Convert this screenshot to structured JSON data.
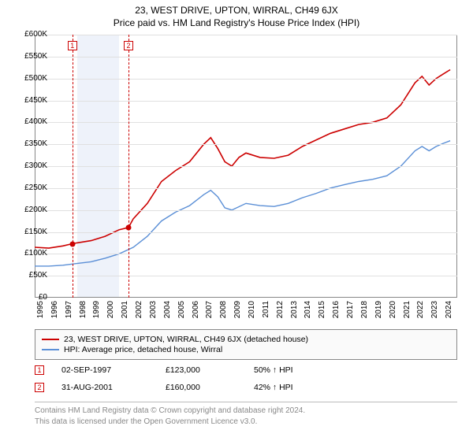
{
  "title_line1": "23, WEST DRIVE, UPTON, WIRRAL, CH49 6JX",
  "title_line2": "Price paid vs. HM Land Registry's House Price Index (HPI)",
  "chart": {
    "type": "line",
    "background_color": "#ffffff",
    "grid_color": "#e0e0e0",
    "axis_color": "#888888",
    "label_fontsize": 10,
    "x": {
      "min": 1995,
      "max": 2025,
      "ticks": [
        1995,
        1996,
        1997,
        1998,
        1999,
        2000,
        2001,
        2002,
        2003,
        2004,
        2005,
        2006,
        2007,
        2008,
        2009,
        2010,
        2011,
        2012,
        2013,
        2014,
        2015,
        2016,
        2017,
        2018,
        2019,
        2020,
        2021,
        2022,
        2023,
        2024
      ]
    },
    "y": {
      "min": 0,
      "max": 600000,
      "step": 50000,
      "tick_labels": [
        "£0",
        "£50K",
        "£100K",
        "£150K",
        "£200K",
        "£250K",
        "£300K",
        "£350K",
        "£400K",
        "£450K",
        "£500K",
        "£550K",
        "£600K"
      ]
    },
    "shaded_bands": [
      {
        "from": 1998,
        "to": 2001,
        "color": "#eef2fa"
      }
    ],
    "sale_markers": [
      {
        "id": "1",
        "x": 1997.67,
        "price": 123000
      },
      {
        "id": "2",
        "x": 2001.66,
        "price": 160000
      }
    ],
    "sale_marker_color": "#cc0000",
    "series": [
      {
        "name": "23, WEST DRIVE, UPTON, WIRRAL, CH49 6JX (detached house)",
        "color": "#cc0000",
        "line_width": 1.6,
        "points": [
          [
            1995,
            115000
          ],
          [
            1996,
            113000
          ],
          [
            1997,
            118000
          ],
          [
            1997.67,
            123000
          ],
          [
            1998,
            125000
          ],
          [
            1999,
            130000
          ],
          [
            2000,
            140000
          ],
          [
            2001,
            155000
          ],
          [
            2001.66,
            160000
          ],
          [
            2002,
            180000
          ],
          [
            2003,
            215000
          ],
          [
            2004,
            265000
          ],
          [
            2005,
            290000
          ],
          [
            2006,
            310000
          ],
          [
            2007,
            350000
          ],
          [
            2007.5,
            365000
          ],
          [
            2008,
            340000
          ],
          [
            2008.5,
            310000
          ],
          [
            2009,
            300000
          ],
          [
            2009.5,
            320000
          ],
          [
            2010,
            330000
          ],
          [
            2011,
            320000
          ],
          [
            2012,
            318000
          ],
          [
            2013,
            325000
          ],
          [
            2014,
            345000
          ],
          [
            2015,
            360000
          ],
          [
            2016,
            375000
          ],
          [
            2017,
            385000
          ],
          [
            2018,
            395000
          ],
          [
            2019,
            400000
          ],
          [
            2020,
            410000
          ],
          [
            2021,
            440000
          ],
          [
            2022,
            490000
          ],
          [
            2022.5,
            505000
          ],
          [
            2023,
            485000
          ],
          [
            2023.5,
            500000
          ],
          [
            2024,
            510000
          ],
          [
            2024.5,
            520000
          ]
        ]
      },
      {
        "name": "HPI: Average price, detached house, Wirral",
        "color": "#5b8fd6",
        "line_width": 1.4,
        "points": [
          [
            1995,
            72000
          ],
          [
            1996,
            72000
          ],
          [
            1997,
            74000
          ],
          [
            1998,
            78000
          ],
          [
            1999,
            82000
          ],
          [
            2000,
            90000
          ],
          [
            2001,
            100000
          ],
          [
            2002,
            115000
          ],
          [
            2003,
            140000
          ],
          [
            2004,
            175000
          ],
          [
            2005,
            195000
          ],
          [
            2006,
            210000
          ],
          [
            2007,
            235000
          ],
          [
            2007.5,
            245000
          ],
          [
            2008,
            230000
          ],
          [
            2008.5,
            205000
          ],
          [
            2009,
            200000
          ],
          [
            2010,
            215000
          ],
          [
            2011,
            210000
          ],
          [
            2012,
            208000
          ],
          [
            2013,
            215000
          ],
          [
            2014,
            228000
          ],
          [
            2015,
            238000
          ],
          [
            2016,
            250000
          ],
          [
            2017,
            258000
          ],
          [
            2018,
            265000
          ],
          [
            2019,
            270000
          ],
          [
            2020,
            278000
          ],
          [
            2021,
            300000
          ],
          [
            2022,
            335000
          ],
          [
            2022.5,
            345000
          ],
          [
            2023,
            335000
          ],
          [
            2023.5,
            345000
          ],
          [
            2024,
            352000
          ],
          [
            2024.5,
            358000
          ]
        ]
      }
    ]
  },
  "legend": {
    "rows": [
      {
        "color": "#cc0000",
        "label": "23, WEST DRIVE, UPTON, WIRRAL, CH49 6JX (detached house)"
      },
      {
        "color": "#5b8fd6",
        "label": "HPI: Average price, detached house, Wirral"
      }
    ]
  },
  "sales": [
    {
      "id": "1",
      "date": "02-SEP-1997",
      "price": "£123,000",
      "pct": "50% ↑ HPI"
    },
    {
      "id": "2",
      "date": "31-AUG-2001",
      "price": "£160,000",
      "pct": "42% ↑ HPI"
    }
  ],
  "attribution": {
    "line1": "Contains HM Land Registry data © Crown copyright and database right 2024.",
    "line2": "This data is licensed under the Open Government Licence v3.0."
  }
}
